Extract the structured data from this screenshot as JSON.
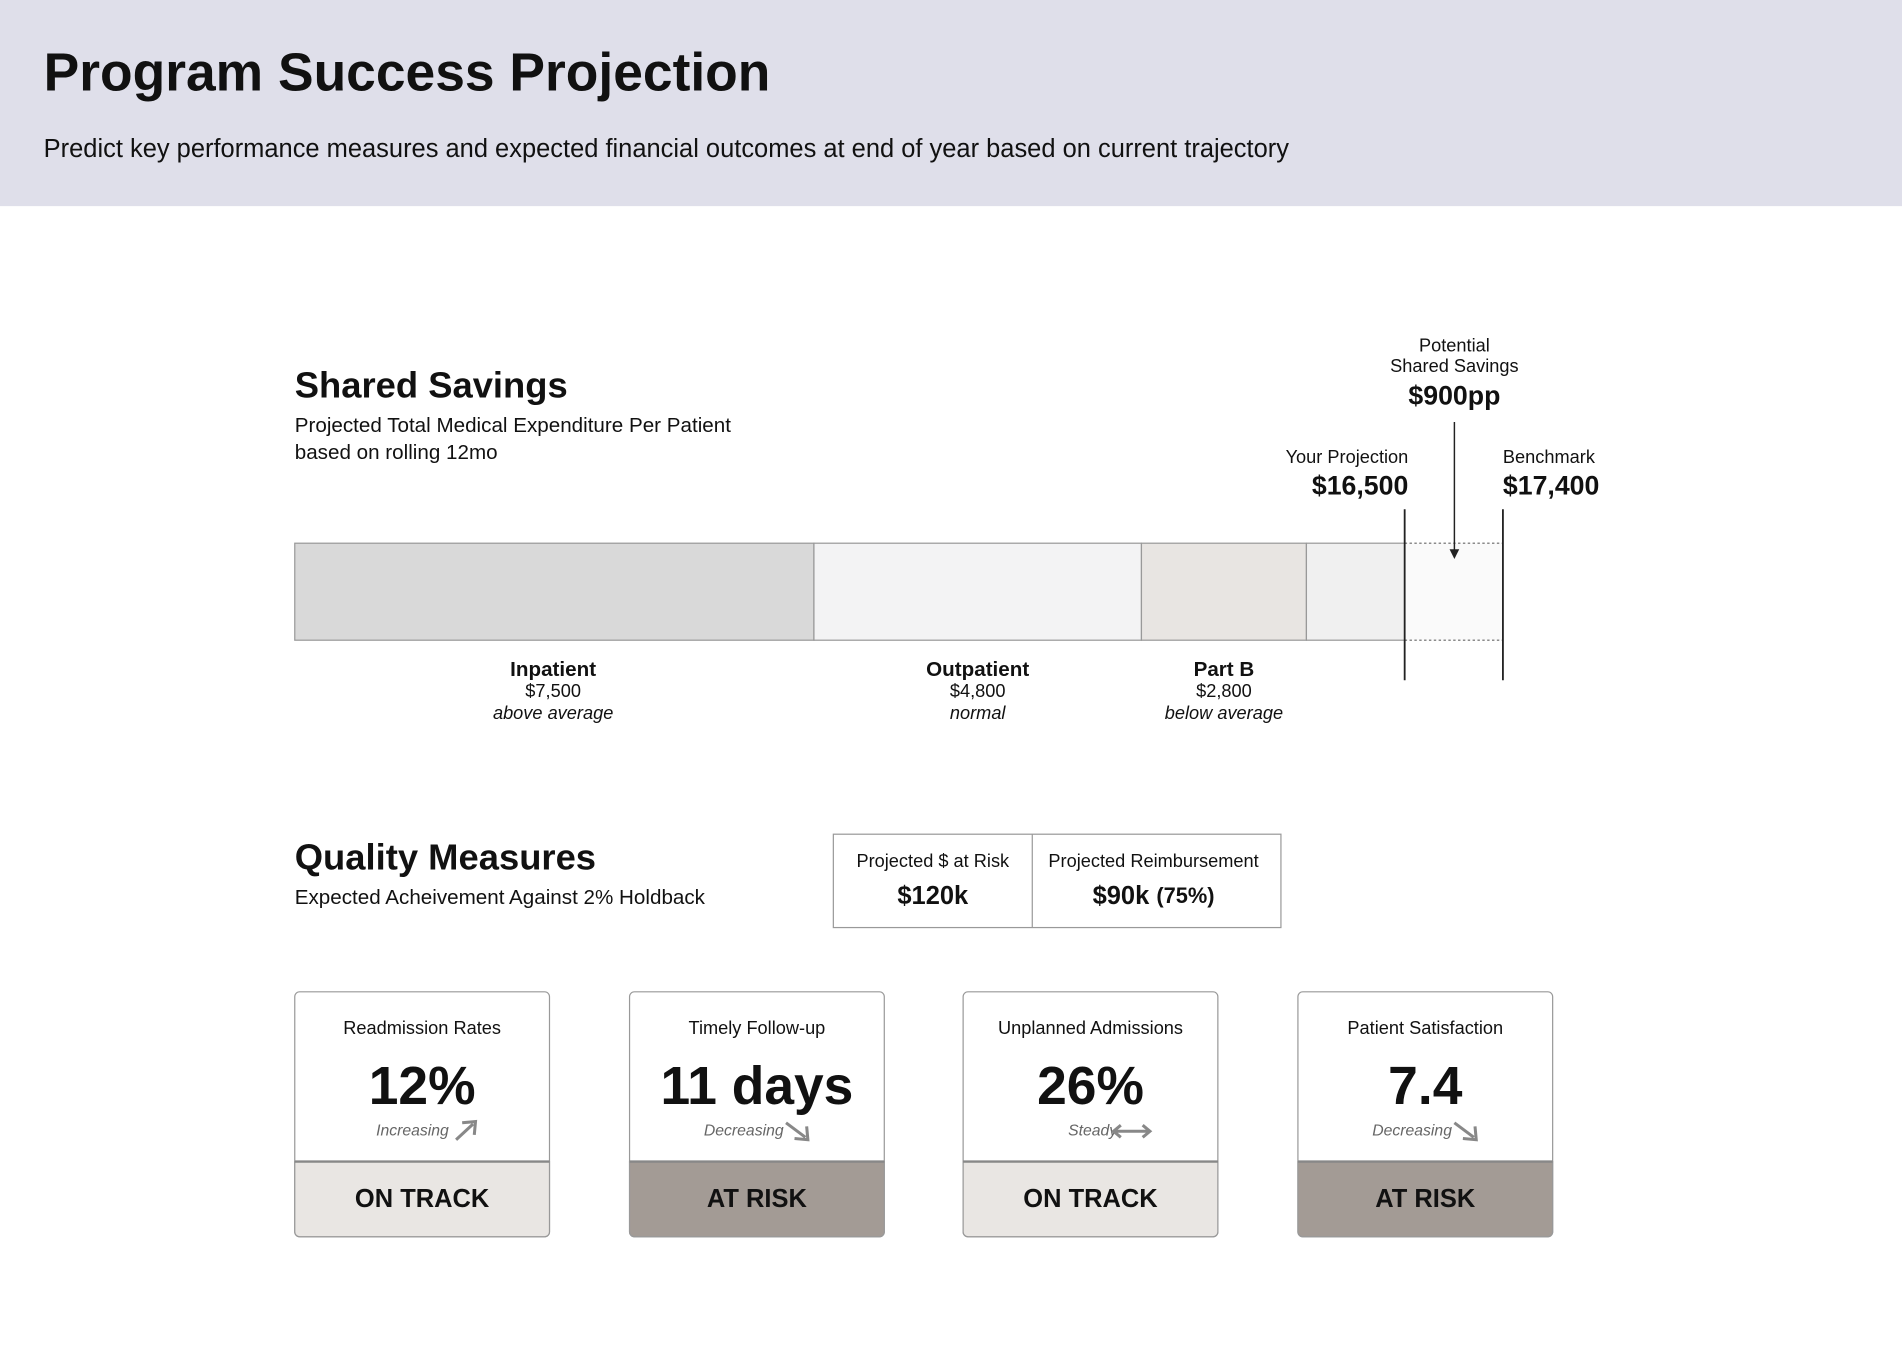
{
  "header": {
    "title": "Program Success Projection",
    "subtitle": "Predict key performance measures and expected financial outcomes at end of year based on current trajectory"
  },
  "shared_savings": {
    "title": "Shared Savings",
    "subtitle": [
      "Projected Total Medical Expenditure Per Patient",
      "based on rolling 12mo"
    ],
    "potential": {
      "label": [
        "Potential",
        "Shared Savings"
      ],
      "value": "$900pp"
    },
    "projection": {
      "label": "Your Projection",
      "value": "$16,500"
    },
    "benchmark": {
      "label": "Benchmark",
      "value": "$17,400"
    },
    "segments": [
      {
        "name": "Inpatient",
        "value": "$7,500",
        "note": "above average"
      },
      {
        "name": "Outpatient",
        "value": "$4,800",
        "note": "normal"
      },
      {
        "name": "Part B",
        "value": "$2,800",
        "note": "below average"
      }
    ]
  },
  "quality_measures": {
    "title": "Quality Measures",
    "subtitle": "Expected Acheivement Against 2% Holdback",
    "summary": [
      {
        "label": "Projected $ at Risk",
        "value": "$120k"
      },
      {
        "label": "Projected Reimbursement",
        "value": "$90k",
        "detail": "(75%)"
      }
    ],
    "cards": [
      {
        "label": "Readmission Rates",
        "value": "12%",
        "trend": "Increasing",
        "status": "ON TRACK"
      },
      {
        "label": "Timely Follow-up",
        "value": "11 days",
        "trend": "Decreasing",
        "status": "AT RISK"
      },
      {
        "label": "Unplanned Admissions",
        "value": "26%",
        "trend": "Steady",
        "status": "ON TRACK"
      },
      {
        "label": "Patient Satisfaction",
        "value": "7.4",
        "trend": "Decreasing",
        "status": "AT RISK"
      }
    ]
  }
}
